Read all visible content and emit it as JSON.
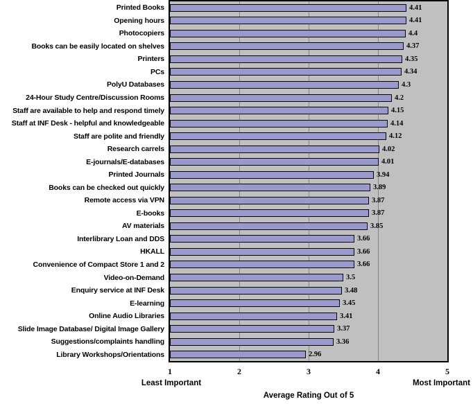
{
  "chart_data": {
    "type": "bar",
    "orientation": "horizontal",
    "xlabel": "Average Rating Out of 5",
    "axis_caption_left": "Least Important",
    "axis_caption_right": "Most Important",
    "xlim": [
      1,
      5
    ],
    "x_ticks": [
      "1",
      "2",
      "3",
      "4",
      "5"
    ],
    "x_gridlines": [
      2,
      3,
      4
    ],
    "legend": "none",
    "grid": "vertical",
    "categories": [
      "Printed Books",
      "Opening hours",
      "Photocopiers",
      "Books can be easily located on shelves",
      "Printers",
      "PCs",
      "PolyU Databases",
      "24-Hour Study Centre/Discussion Rooms",
      "Staff are available to help and respond timely",
      "Staff at INF Desk - helpful and knowledgeable",
      "Staff are polite and friendly",
      "Research carrels",
      "E-journals/E-databases",
      "Printed Journals",
      "Books can be checked out quickly",
      "Remote access via VPN",
      "E-books",
      "AV materials",
      "Interlibrary Loan and DDS",
      "HKALL",
      "Convenience of Compact Store 1 and 2",
      "Video-on-Demand",
      "Enquiry service at INF Desk",
      "E-learning",
      "Online Audio Libraries",
      "Slide Image Database/ Digital Image Gallery",
      "Suggestions/complaints handling",
      "Library Workshops/Orientations"
    ],
    "values": [
      4.41,
      4.41,
      4.4,
      4.37,
      4.35,
      4.34,
      4.3,
      4.2,
      4.15,
      4.14,
      4.12,
      4.02,
      4.01,
      3.94,
      3.89,
      3.87,
      3.87,
      3.85,
      3.66,
      3.66,
      3.66,
      3.5,
      3.48,
      3.45,
      3.41,
      3.37,
      3.36,
      2.96
    ],
    "value_labels": [
      "4.41",
      "4.41",
      "4.4",
      "4.37",
      "4.35",
      "4.34",
      "4.3",
      "4.2",
      "4.15",
      "4.14",
      "4.12",
      "4.02",
      "4.01",
      "3.94",
      "3.89",
      "3.87",
      "3.87",
      "3.85",
      "3.66",
      "3.66",
      "3.66",
      "3.5",
      "3.48",
      "3.45",
      "3.41",
      "3.37",
      "3.36",
      "2.96"
    ],
    "colors": {
      "bar_fill": "#9999CC",
      "bar_border": "#000000",
      "plot_bg": "#C0C0C0",
      "plot_border": "#000000",
      "gridline": "#848484",
      "text": "#000000",
      "page_bg": "#FFFFFF"
    }
  }
}
